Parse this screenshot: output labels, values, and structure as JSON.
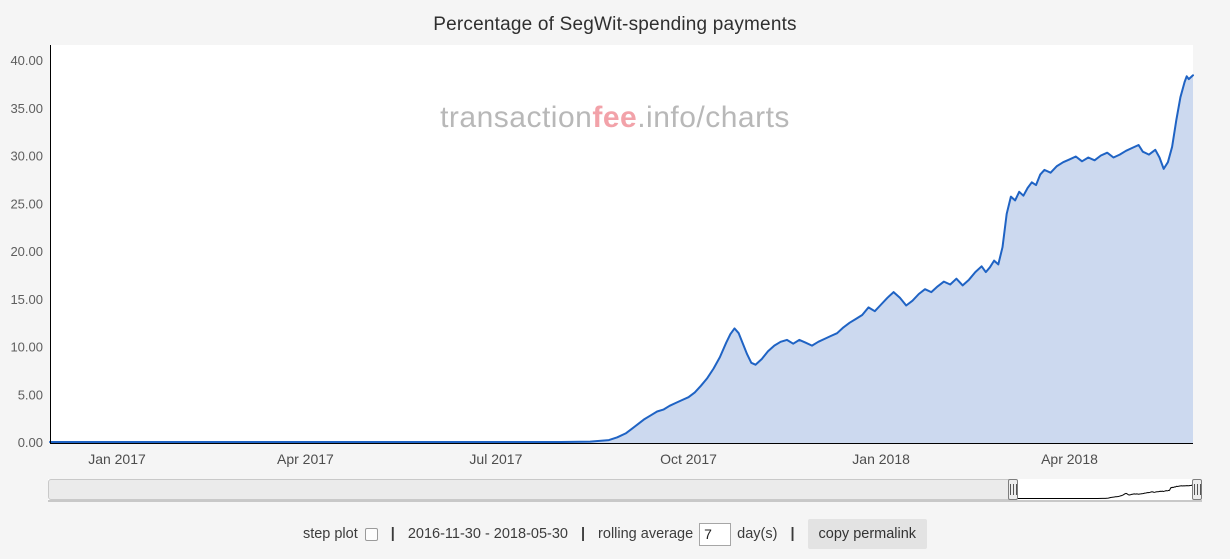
{
  "title": "Percentage of SegWit-spending payments",
  "watermark": {
    "part1": "transaction",
    "part2": "fee",
    "part3": ".info/charts"
  },
  "colors": {
    "background": "#f5f5f5",
    "plot_bg": "#ffffff",
    "line": "#1f63c4",
    "fill": "#ccd9ef",
    "axis_text": "#5e5e5e",
    "watermark_gray": "#b8b8b8",
    "watermark_pink": "#f2a2a9",
    "preview_line": "#000000"
  },
  "controls": {
    "step_plot_label": "step plot",
    "separator": "|",
    "date_range": "2016-11-30 - 2018-05-30",
    "rolling_average_label": "rolling average",
    "rolling_average_value": "7",
    "days_label": "day(s)",
    "copy_permalink_label": "copy permalink"
  },
  "chart_data": {
    "type": "area",
    "title": "Percentage of SegWit-spending payments",
    "xlabel": "",
    "ylabel": "",
    "x_axis_type": "time",
    "x_start": "2016-11-30",
    "x_end": "2018-05-30",
    "ylim": [
      0,
      41.7
    ],
    "grid": false,
    "legend": "none",
    "y_ticks": [
      {
        "v": 0,
        "label": "0.00"
      },
      {
        "v": 5,
        "label": "5.00"
      },
      {
        "v": 10,
        "label": "10.00"
      },
      {
        "v": 15,
        "label": "15.00"
      },
      {
        "v": 20,
        "label": "20.00"
      },
      {
        "v": 25,
        "label": "25.00"
      },
      {
        "v": 30,
        "label": "30.00"
      },
      {
        "v": 35,
        "label": "35.00"
      },
      {
        "v": 40,
        "label": "40.00"
      }
    ],
    "x_ticks": [
      {
        "date": "2017-01-01",
        "label": "Jan 2017"
      },
      {
        "date": "2017-04-01",
        "label": "Apr 2017"
      },
      {
        "date": "2017-07-01",
        "label": "Jul 2017"
      },
      {
        "date": "2017-10-01",
        "label": "Oct 2017"
      },
      {
        "date": "2018-01-01",
        "label": "Jan 2018"
      },
      {
        "date": "2018-04-01",
        "label": "Apr 2018"
      }
    ],
    "points": [
      [
        "2016-11-30",
        0.1
      ],
      [
        "2016-12-15",
        0.1
      ],
      [
        "2017-01-01",
        0.1
      ],
      [
        "2017-01-15",
        0.1
      ],
      [
        "2017-02-01",
        0.1
      ],
      [
        "2017-02-15",
        0.1
      ],
      [
        "2017-03-01",
        0.1
      ],
      [
        "2017-03-15",
        0.1
      ],
      [
        "2017-04-01",
        0.1
      ],
      [
        "2017-04-15",
        0.1
      ],
      [
        "2017-05-01",
        0.1
      ],
      [
        "2017-05-15",
        0.1
      ],
      [
        "2017-06-01",
        0.1
      ],
      [
        "2017-06-15",
        0.1
      ],
      [
        "2017-07-01",
        0.1
      ],
      [
        "2017-07-15",
        0.1
      ],
      [
        "2017-08-01",
        0.1
      ],
      [
        "2017-08-15",
        0.15
      ],
      [
        "2017-08-24",
        0.3
      ],
      [
        "2017-08-28",
        0.6
      ],
      [
        "2017-09-01",
        1.0
      ],
      [
        "2017-09-04",
        1.5
      ],
      [
        "2017-09-07",
        2.0
      ],
      [
        "2017-09-10",
        2.5
      ],
      [
        "2017-09-13",
        2.9
      ],
      [
        "2017-09-16",
        3.3
      ],
      [
        "2017-09-19",
        3.5
      ],
      [
        "2017-09-22",
        3.9
      ],
      [
        "2017-09-25",
        4.2
      ],
      [
        "2017-09-28",
        4.5
      ],
      [
        "2017-10-01",
        4.8
      ],
      [
        "2017-10-04",
        5.3
      ],
      [
        "2017-10-07",
        6.0
      ],
      [
        "2017-10-10",
        6.8
      ],
      [
        "2017-10-13",
        7.8
      ],
      [
        "2017-10-16",
        9.0
      ],
      [
        "2017-10-19",
        10.5
      ],
      [
        "2017-10-21",
        11.4
      ],
      [
        "2017-10-23",
        12.0
      ],
      [
        "2017-10-25",
        11.5
      ],
      [
        "2017-10-27",
        10.4
      ],
      [
        "2017-10-29",
        9.3
      ],
      [
        "2017-10-31",
        8.4
      ],
      [
        "2017-11-02",
        8.2
      ],
      [
        "2017-11-05",
        8.8
      ],
      [
        "2017-11-08",
        9.6
      ],
      [
        "2017-11-11",
        10.2
      ],
      [
        "2017-11-14",
        10.6
      ],
      [
        "2017-11-17",
        10.8
      ],
      [
        "2017-11-20",
        10.4
      ],
      [
        "2017-11-23",
        10.8
      ],
      [
        "2017-11-26",
        10.5
      ],
      [
        "2017-11-29",
        10.2
      ],
      [
        "2017-12-02",
        10.6
      ],
      [
        "2017-12-05",
        10.9
      ],
      [
        "2017-12-08",
        11.2
      ],
      [
        "2017-12-11",
        11.5
      ],
      [
        "2017-12-14",
        12.1
      ],
      [
        "2017-12-17",
        12.6
      ],
      [
        "2017-12-20",
        13.0
      ],
      [
        "2017-12-23",
        13.4
      ],
      [
        "2017-12-26",
        14.2
      ],
      [
        "2017-12-29",
        13.8
      ],
      [
        "2018-01-01",
        14.5
      ],
      [
        "2018-01-04",
        15.2
      ],
      [
        "2018-01-07",
        15.8
      ],
      [
        "2018-01-10",
        15.2
      ],
      [
        "2018-01-13",
        14.4
      ],
      [
        "2018-01-16",
        14.9
      ],
      [
        "2018-01-19",
        15.6
      ],
      [
        "2018-01-22",
        16.1
      ],
      [
        "2018-01-25",
        15.8
      ],
      [
        "2018-01-28",
        16.4
      ],
      [
        "2018-01-31",
        16.9
      ],
      [
        "2018-02-03",
        16.6
      ],
      [
        "2018-02-06",
        17.2
      ],
      [
        "2018-02-09",
        16.5
      ],
      [
        "2018-02-12",
        17.1
      ],
      [
        "2018-02-15",
        17.9
      ],
      [
        "2018-02-18",
        18.5
      ],
      [
        "2018-02-20",
        17.9
      ],
      [
        "2018-02-22",
        18.4
      ],
      [
        "2018-02-24",
        19.1
      ],
      [
        "2018-02-26",
        18.7
      ],
      [
        "2018-02-28",
        20.5
      ],
      [
        "2018-03-02",
        24.0
      ],
      [
        "2018-03-04",
        25.8
      ],
      [
        "2018-03-06",
        25.4
      ],
      [
        "2018-03-08",
        26.3
      ],
      [
        "2018-03-10",
        25.9
      ],
      [
        "2018-03-12",
        26.7
      ],
      [
        "2018-03-14",
        27.3
      ],
      [
        "2018-03-16",
        27.0
      ],
      [
        "2018-03-18",
        28.1
      ],
      [
        "2018-03-20",
        28.6
      ],
      [
        "2018-03-23",
        28.3
      ],
      [
        "2018-03-26",
        29.0
      ],
      [
        "2018-03-29",
        29.4
      ],
      [
        "2018-04-01",
        29.7
      ],
      [
        "2018-04-04",
        30.0
      ],
      [
        "2018-04-07",
        29.5
      ],
      [
        "2018-04-10",
        29.9
      ],
      [
        "2018-04-13",
        29.6
      ],
      [
        "2018-04-16",
        30.1
      ],
      [
        "2018-04-19",
        30.4
      ],
      [
        "2018-04-22",
        29.9
      ],
      [
        "2018-04-25",
        30.2
      ],
      [
        "2018-04-28",
        30.6
      ],
      [
        "2018-05-01",
        30.9
      ],
      [
        "2018-05-04",
        31.2
      ],
      [
        "2018-05-06",
        30.5
      ],
      [
        "2018-05-09",
        30.2
      ],
      [
        "2018-05-12",
        30.7
      ],
      [
        "2018-05-14",
        29.9
      ],
      [
        "2018-05-16",
        28.7
      ],
      [
        "2018-05-18",
        29.4
      ],
      [
        "2018-05-20",
        31.0
      ],
      [
        "2018-05-22",
        33.8
      ],
      [
        "2018-05-24",
        36.2
      ],
      [
        "2018-05-26",
        37.8
      ],
      [
        "2018-05-27",
        38.4
      ],
      [
        "2018-05-28",
        38.1
      ],
      [
        "2018-05-30",
        38.5
      ]
    ]
  }
}
